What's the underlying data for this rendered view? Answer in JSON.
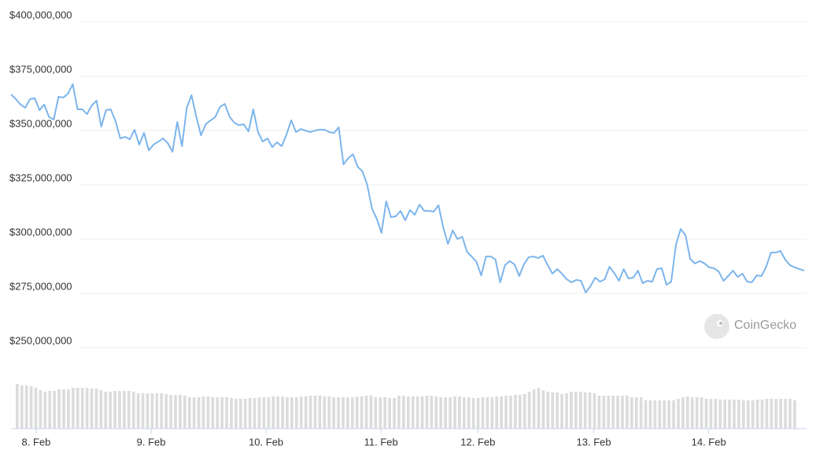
{
  "chart_data": {
    "type": "line",
    "watermark": "CoinGecko",
    "ylim": [
      212700000,
      400000000
    ],
    "yticks": [
      {
        "value": 400000000,
        "label": "$400,000,000"
      },
      {
        "value": 375000000,
        "label": "$375,000,000"
      },
      {
        "value": 350000000,
        "label": "$350,000,000"
      },
      {
        "value": 325000000,
        "label": "$325,000,000"
      },
      {
        "value": 300000000,
        "label": "$300,000,000"
      },
      {
        "value": 275000000,
        "label": "$275,000,000"
      },
      {
        "value": 250000000,
        "label": "$250,000,000"
      }
    ],
    "xlim": [
      0,
      167
    ],
    "xticks": [
      {
        "value": 5.3,
        "label": "8. Feb"
      },
      {
        "value": 29.5,
        "label": "9. Feb"
      },
      {
        "value": 53.7,
        "label": "10. Feb"
      },
      {
        "value": 77.9,
        "label": "11. Feb"
      },
      {
        "value": 98.3,
        "label": "12. Feb"
      },
      {
        "value": 122.7,
        "label": "13. Feb"
      },
      {
        "value": 146.9,
        "label": "14. Feb"
      }
    ],
    "grid": true,
    "series": [
      {
        "color": "#7cb5ec",
        "values": [
          366700000.0,
          364500000.0,
          362000000.0,
          360500000.0,
          364500000.0,
          364900000.0,
          359400000.0,
          362000000.0,
          356200000.0,
          355100000.0,
          365600000.0,
          365200000.0,
          367000000.0,
          371400000.0,
          359800000.0,
          359800000.0,
          357600000.0,
          361600000.0,
          363800000.0,
          351800000.0,
          359400000.0,
          359800000.0,
          354400000.0,
          346400000.0,
          347100000.0,
          346000000.0,
          350400000.0,
          343500000.0,
          348900000.0,
          340900000.0,
          343500000.0,
          344900000.0,
          346400000.0,
          344200000.0,
          340200000.0,
          354000000.0,
          342800000.0,
          360500000.0,
          366300000.0,
          356500000.0,
          347800000.0,
          352900000.0,
          354700000.0,
          356200000.0,
          360900000.0,
          362300000.0,
          356500000.0,
          353600000.0,
          352500000.0,
          352900000.0,
          349600000.0,
          359800000.0,
          349300000.0,
          344900000.0,
          346400000.0,
          342400000.0,
          344600000.0,
          342800000.0,
          348200000.0,
          354700000.0,
          349300000.0,
          350700000.0,
          350000000.0,
          349300000.0,
          350000000.0,
          350400000.0,
          350400000.0,
          349300000.0,
          348900000.0,
          351500000.0,
          334400000.0,
          337300000.0,
          339100000.0,
          333300000.0,
          331200000.0,
          325000000.0,
          314100000.0,
          309400000.0,
          302900000.0,
          317400000.0,
          310100000.0,
          310500000.0,
          313000000.0,
          308700000.0,
          313400000.0,
          311200000.0,
          315900000.0,
          313000000.0,
          313000000.0,
          312700000.0,
          315600000.0,
          305400000.0,
          297800000.0,
          304000000.0,
          300000000.0,
          301100000.0,
          294200000.0,
          292000000.0,
          289500000.0,
          283300000.0,
          292000000.0,
          292000000.0,
          290600000.0,
          280100000.0,
          288000000.0,
          289900000.0,
          288400000.0,
          283000000.0,
          288400000.0,
          291700000.0,
          292000000.0,
          291300000.0,
          292400000.0,
          288000000.0,
          284100000.0,
          286200000.0,
          284100000.0,
          281500000.0,
          280100000.0,
          281200000.0,
          280800000.0,
          275400000.0,
          278300000.0,
          282300000.0,
          280400000.0,
          281500000.0,
          287300000.0,
          284400000.0,
          280800000.0,
          286200000.0,
          281900000.0,
          282300000.0,
          285500000.0,
          279700000.0,
          280800000.0,
          280400000.0,
          286200000.0,
          286600000.0,
          279000000.0,
          280400000.0,
          297500000.0,
          304700000.0,
          301800000.0,
          290900000.0,
          288800000.0,
          289900000.0,
          288800000.0,
          287000000.0,
          286600000.0,
          285100000.0,
          280800000.0,
          283000000.0,
          285500000.0,
          282600000.0,
          284100000.0,
          280400000.0,
          280100000.0,
          283300000.0,
          283000000.0,
          287300000.0,
          293800000.0,
          293800000.0,
          294600000.0,
          290600000.0,
          288000000.0,
          287000000.0,
          286200000.0,
          285500000.0
        ]
      }
    ],
    "volume": {
      "color": "#dcdcdc",
      "values": [
        57,
        55,
        55,
        54,
        52,
        49,
        47,
        48,
        48,
        50,
        50,
        50,
        52,
        52,
        52,
        52,
        51,
        51,
        49,
        47,
        47,
        48,
        48,
        48,
        48,
        47,
        45,
        45,
        45,
        45,
        45,
        45,
        44,
        43,
        43,
        43,
        42,
        40,
        40,
        40,
        41,
        41,
        40,
        40,
        40,
        40,
        39,
        38,
        38,
        38,
        39,
        39,
        40,
        40,
        40,
        41,
        41,
        41,
        40,
        40,
        40,
        41,
        41,
        42,
        42,
        42,
        41,
        41,
        40,
        40,
        40,
        40,
        40,
        41,
        41,
        42,
        42,
        40,
        40,
        40,
        39,
        39,
        42,
        42,
        41,
        41,
        41,
        41,
        42,
        42,
        41,
        40,
        40,
        40,
        41,
        41,
        40,
        40,
        39,
        39,
        40,
        40,
        40,
        41,
        41,
        42,
        42,
        43,
        43,
        44,
        47,
        50,
        52,
        49,
        47,
        46,
        46,
        44,
        45,
        47,
        47,
        47,
        46,
        46,
        45,
        42,
        42,
        42,
        42,
        42,
        42,
        42,
        40,
        40,
        40,
        36,
        36,
        36,
        36,
        36,
        36,
        36,
        38,
        40,
        41,
        40,
        40,
        40,
        38,
        38,
        38,
        37,
        37,
        37,
        37,
        37,
        36,
        36,
        36,
        37,
        37,
        38,
        38,
        38,
        38,
        38,
        38,
        36
      ]
    }
  }
}
